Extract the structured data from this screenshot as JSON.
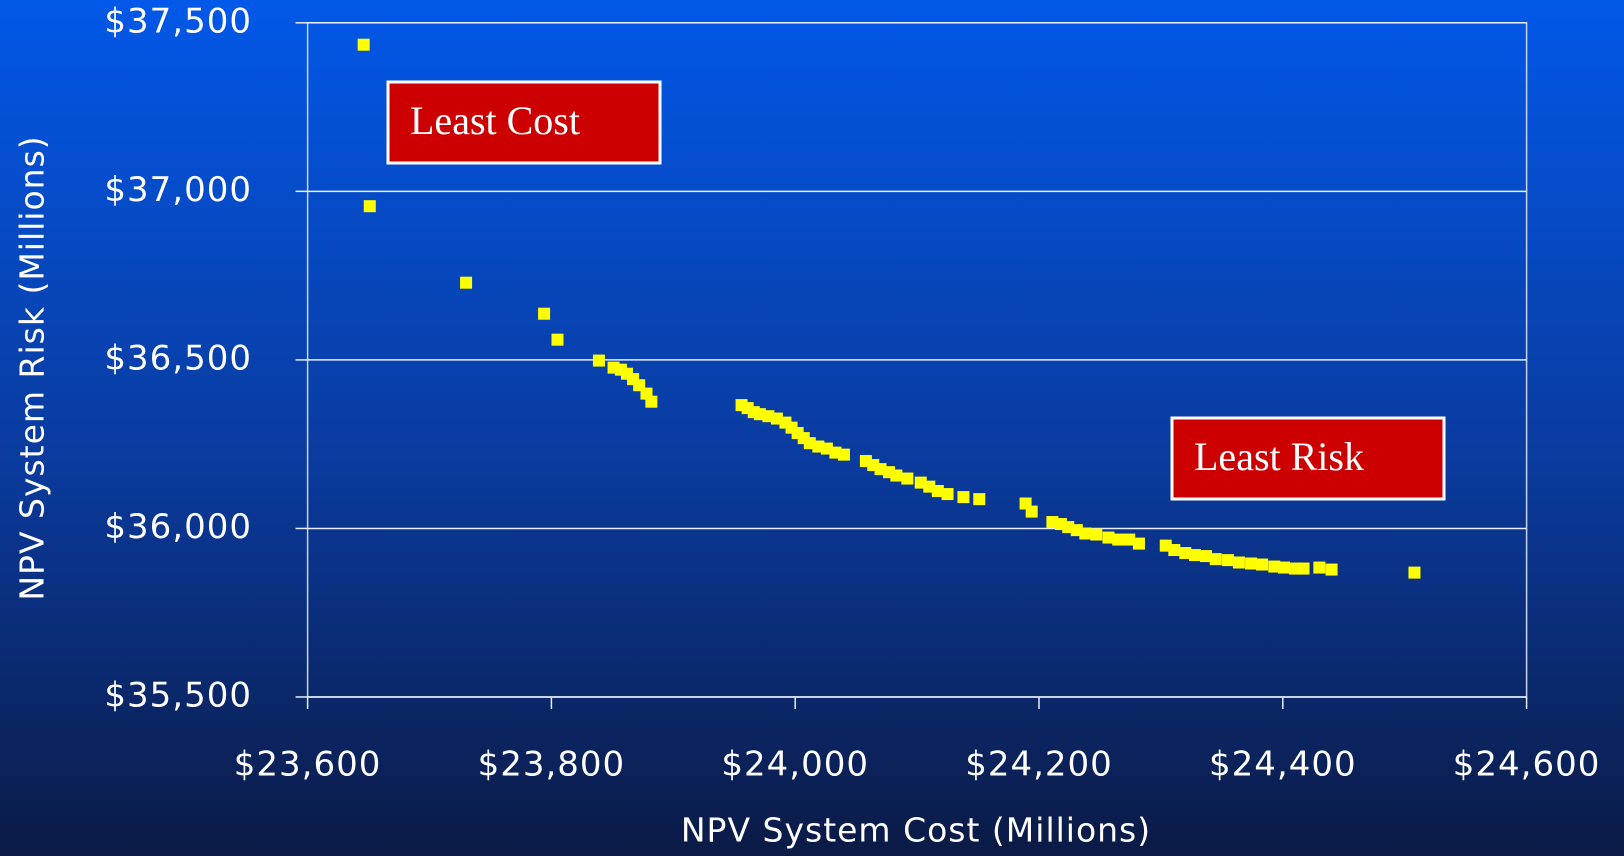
{
  "chart_data": {
    "type": "scatter",
    "xlabel": "NPV System Cost (Millions)",
    "ylabel": "NPV System Risk  (Millions)",
    "color": "#ffff00",
    "grid": true,
    "xlim": [
      23600,
      24600
    ],
    "ylim": [
      35500,
      37500
    ],
    "xticks": [
      {
        "value": 23600,
        "label": "$23,600"
      },
      {
        "value": 23800,
        "label": "$23,800"
      },
      {
        "value": 24000,
        "label": "$24,000"
      },
      {
        "value": 24200,
        "label": "$24,200"
      },
      {
        "value": 24400,
        "label": "$24,400"
      },
      {
        "value": 24600,
        "label": "$24,600"
      }
    ],
    "yticks": [
      {
        "value": 35500,
        "label": "$35,500"
      },
      {
        "value": 36000,
        "label": "$36,000"
      },
      {
        "value": 36500,
        "label": "$36,500"
      },
      {
        "value": 37000,
        "label": "$37,000"
      },
      {
        "value": 37500,
        "label": "$37,500"
      }
    ],
    "x": [
      23646,
      23651,
      23730,
      23794,
      23805,
      23839,
      23851,
      23857,
      23862,
      23867,
      23872,
      23878,
      23882,
      23956,
      23961,
      23966,
      23971,
      23978,
      23985,
      23992,
      23997,
      24002,
      24007,
      24012,
      24019,
      24026,
      24033,
      24040,
      24058,
      24064,
      24070,
      24077,
      24083,
      24092,
      24103,
      24110,
      24117,
      24125,
      24138,
      24151,
      24189,
      24194,
      24211,
      24218,
      24224,
      24231,
      24238,
      24247,
      24257,
      24265,
      24274,
      24282,
      24304,
      24311,
      24320,
      24328,
      24337,
      24345,
      24355,
      24364,
      24374,
      24383,
      24393,
      24401,
      24410,
      24417,
      24430,
      24440,
      24508
    ],
    "values": [
      37435,
      36956,
      36729,
      36637,
      36560,
      36498,
      36477,
      36471,
      36459,
      36443,
      36425,
      36400,
      36376,
      36366,
      36357,
      36345,
      36339,
      36333,
      36326,
      36314,
      36299,
      36283,
      36268,
      36253,
      36243,
      36237,
      36225,
      36219,
      36200,
      36188,
      36176,
      36167,
      36157,
      36148,
      36136,
      36124,
      36111,
      36102,
      36093,
      36087,
      36074,
      36050,
      36019,
      36013,
      36004,
      35995,
      35985,
      35982,
      35973,
      35967,
      35967,
      35955,
      35949,
      35936,
      35927,
      35921,
      35918,
      35909,
      35906,
      35899,
      35896,
      35893,
      35887,
      35884,
      35881,
      35881,
      35884,
      35878,
      35869
    ],
    "annotations": [
      {
        "text": "Least Cost"
      },
      {
        "text": "Least Risk"
      }
    ]
  }
}
